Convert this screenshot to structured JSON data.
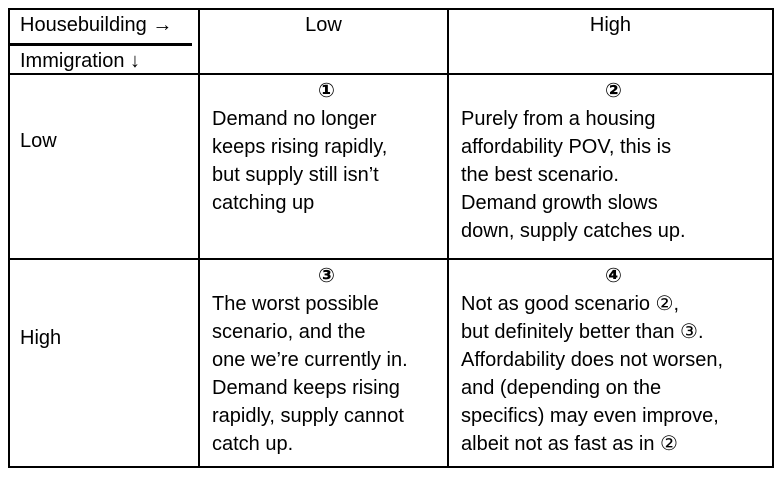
{
  "table": {
    "corner": {
      "top": "Housebuilding →",
      "bottom": "Immigration ↓"
    },
    "col_headers": [
      "Low",
      "High"
    ],
    "row_headers": [
      "Low",
      "High"
    ],
    "cells": [
      {
        "number": "①",
        "text": "Demand no longer\nkeeps rising rapidly,\nbut supply still isn’t\ncatching up"
      },
      {
        "number": "②",
        "text": "Purely from a housing\naffordability POV, this is\nthe best scenario.\nDemand growth slows\ndown, supply catches up."
      },
      {
        "number": "③",
        "text": "The worst possible\nscenario, and the\none we’re currently in.\nDemand keeps rising\nrapidly, supply cannot\ncatch up."
      },
      {
        "number": "④",
        "text": "Not as good scenario ②,\nbut definitely better than ③.\nAffordability does not worsen,\nand (depending on the\nspecifics) may even improve,\nalbeit not as fast as in ②"
      }
    ],
    "colors": {
      "border": "#000000",
      "text": "#000000",
      "background": "#ffffff"
    }
  }
}
